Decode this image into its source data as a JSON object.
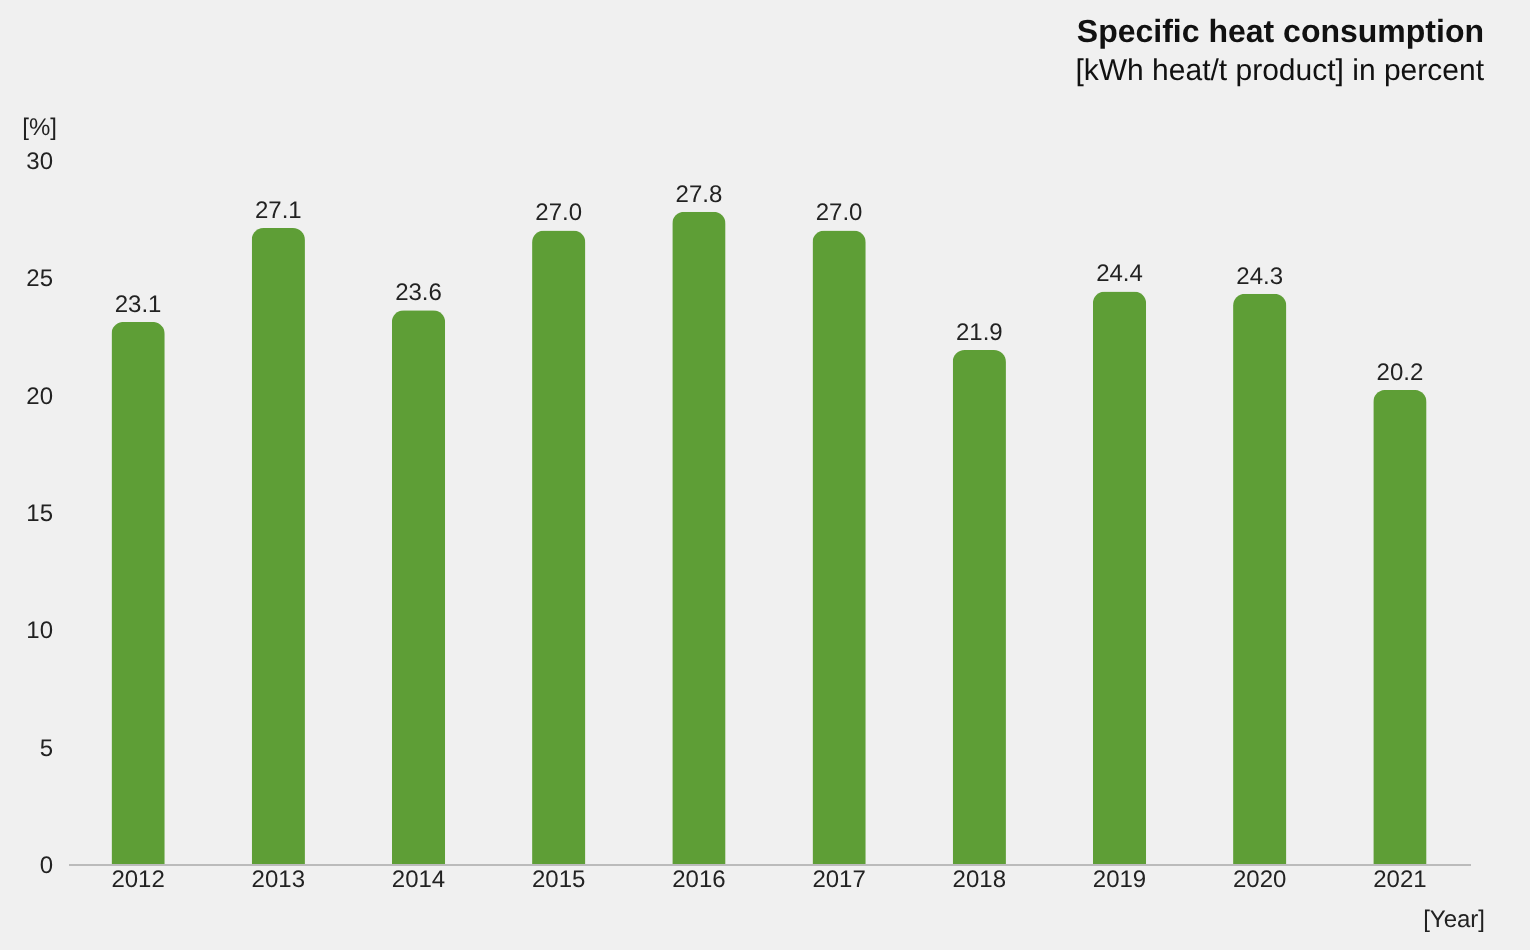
{
  "chart_data": {
    "type": "bar",
    "title": "Specific heat consumption",
    "subtitle": "[kWh heat/t product] in percent",
    "xlabel": "[Year]",
    "ylabel": "[%]",
    "categories": [
      "2012",
      "2013",
      "2014",
      "2015",
      "2016",
      "2017",
      "2018",
      "2019",
      "2020",
      "2021"
    ],
    "values": [
      23.1,
      27.1,
      23.6,
      27.0,
      27.8,
      27.0,
      21.9,
      24.4,
      24.3,
      20.2
    ],
    "value_labels": [
      "23.1",
      "27.1",
      "23.6",
      "27.0",
      "27.8",
      "27.0",
      "21.9",
      "24.4",
      "24.3",
      "20.2"
    ],
    "color": "#5e9e36",
    "ylim": [
      0,
      30
    ],
    "yticks": [
      0,
      5,
      10,
      15,
      20,
      25,
      30
    ],
    "grid": false
  }
}
